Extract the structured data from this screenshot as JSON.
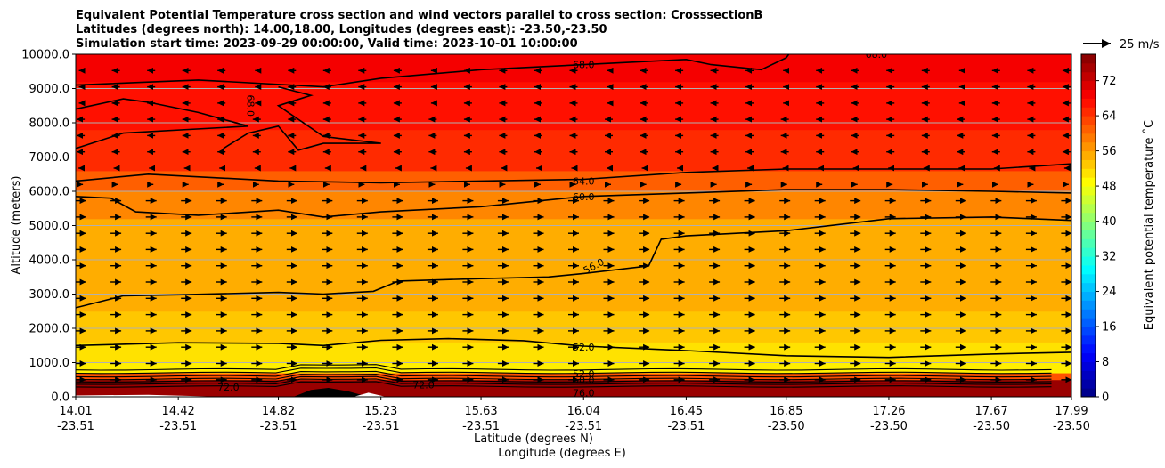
{
  "chart_data": {
    "type": "contour-cross-section",
    "title_lines": [
      "Equivalent Potential Temperature cross section and wind vectors parallel to cross section: CrosssectionB",
      "Latitudes (degrees north): 14.00,18.00, Longitudes (degrees east): -23.50,-23.50",
      "Simulation start time: 2023-09-29 00:00:00, Valid time: 2023-10-01 10:00:00"
    ],
    "xlabel_lat": "Latitude (degrees N)",
    "xlabel_lon": "Longitude (degrees E)",
    "ylabel": "Altitude (meters)",
    "xlim": [
      14.01,
      17.99
    ],
    "ylim": [
      0,
      10000
    ],
    "xticks": [
      {
        "lat": "14.01",
        "lon": "-23.51",
        "value": 14.01
      },
      {
        "lat": "14.42",
        "lon": "-23.51",
        "value": 14.42
      },
      {
        "lat": "14.82",
        "lon": "-23.51",
        "value": 14.82
      },
      {
        "lat": "15.23",
        "lon": "-23.51",
        "value": 15.23
      },
      {
        "lat": "15.63",
        "lon": "-23.51",
        "value": 15.63
      },
      {
        "lat": "16.04",
        "lon": "-23.51",
        "value": 16.04
      },
      {
        "lat": "16.45",
        "lon": "-23.51",
        "value": 16.45
      },
      {
        "lat": "16.85",
        "lon": "-23.50",
        "value": 16.85
      },
      {
        "lat": "17.26",
        "lon": "-23.50",
        "value": 17.26
      },
      {
        "lat": "17.67",
        "lon": "-23.50",
        "value": 17.67
      },
      {
        "lat": "17.99",
        "lon": "-23.50",
        "value": 17.99
      }
    ],
    "yticks": [
      "0.0",
      "1000.0",
      "2000.0",
      "3000.0",
      "4000.0",
      "5000.0",
      "6000.0",
      "7000.0",
      "8000.0",
      "9000.0",
      "10000.0"
    ],
    "ytick_values": [
      0,
      1000,
      2000,
      3000,
      4000,
      5000,
      6000,
      7000,
      8000,
      9000,
      10000
    ],
    "colorbar": {
      "label": "Equivalent potential temperature ˚C",
      "ticks": [
        "0",
        "8",
        "16",
        "24",
        "32",
        "40",
        "48",
        "56",
        "64",
        "72"
      ],
      "tick_values": [
        0,
        8,
        16,
        24,
        32,
        40,
        48,
        56,
        64,
        72
      ],
      "range": [
        0,
        78
      ],
      "colormap": "jet"
    },
    "quiver_key_label": "25 m/s",
    "wind_direction": "northward (along section, toward increasing latitude) above ~6000 m westward-pointing arrows (negative) and below ~6000 m positive",
    "contour_labels": [
      {
        "text": "68.0",
        "x": 16.04,
        "y": 9700
      },
      {
        "text": "68.0",
        "x": 14.71,
        "y": 8500,
        "rotated": true
      },
      {
        "text": "68.0",
        "x": 17.21,
        "y": 10000
      },
      {
        "text": "64.0",
        "x": 16.04,
        "y": 6300
      },
      {
        "text": "60.0",
        "x": 16.04,
        "y": 5850
      },
      {
        "text": "56.0",
        "x": 16.08,
        "y": 3820
      },
      {
        "text": "52.0",
        "x": 16.04,
        "y": 1450
      },
      {
        "text": "52.0",
        "x": 16.04,
        "y": 680
      },
      {
        "text": "60.0",
        "x": 16.04,
        "y": 500
      },
      {
        "text": "72.0",
        "x": 14.62,
        "y": 280
      },
      {
        "text": "72.0",
        "x": 15.4,
        "y": 350
      },
      {
        "text": "76.0",
        "x": 16.04,
        "y": 120
      }
    ],
    "filled_bands_by_altitude": [
      {
        "ymin": 0,
        "ymax": 500,
        "value": 76
      },
      {
        "ymin": 500,
        "ymax": 700,
        "value": 62
      },
      {
        "ymin": 700,
        "ymax": 1000,
        "value": 50
      },
      {
        "ymin": 1000,
        "ymax": 1600,
        "value": 51
      },
      {
        "ymin": 1600,
        "ymax": 2500,
        "value": 53
      },
      {
        "ymin": 2500,
        "ymax": 5200,
        "value": 55
      },
      {
        "ymin": 5200,
        "ymax": 6000,
        "value": 58
      },
      {
        "ymin": 6000,
        "ymax": 6600,
        "value": 61
      },
      {
        "ymin": 6600,
        "ymax": 7800,
        "value": 65
      },
      {
        "ymin": 7800,
        "ymax": 9200,
        "value": 67
      },
      {
        "ymin": 9200,
        "ymax": 10000,
        "value": 69
      }
    ],
    "contour_lines": [
      {
        "level": 52,
        "points": [
          [
            14.01,
            1500
          ],
          [
            14.42,
            1580
          ],
          [
            14.82,
            1560
          ],
          [
            15.0,
            1500
          ],
          [
            15.23,
            1650
          ],
          [
            15.5,
            1700
          ],
          [
            15.8,
            1640
          ],
          [
            16.04,
            1480
          ],
          [
            16.45,
            1350
          ],
          [
            16.85,
            1200
          ],
          [
            17.26,
            1150
          ],
          [
            17.67,
            1250
          ],
          [
            17.99,
            1300
          ]
        ]
      },
      {
        "level": 56,
        "points": [
          [
            14.01,
            2600
          ],
          [
            14.2,
            2950
          ],
          [
            14.42,
            2980
          ],
          [
            14.82,
            3050
          ],
          [
            15.0,
            3000
          ],
          [
            15.2,
            3080
          ],
          [
            15.3,
            3380
          ],
          [
            15.63,
            3450
          ],
          [
            15.9,
            3500
          ],
          [
            16.04,
            3600
          ],
          [
            16.3,
            3820
          ],
          [
            16.35,
            4600
          ],
          [
            16.45,
            4700
          ],
          [
            16.85,
            4850
          ],
          [
            17.26,
            5200
          ],
          [
            17.67,
            5250
          ],
          [
            17.99,
            5150
          ]
        ]
      },
      {
        "level": 60,
        "points": [
          [
            14.01,
            5850
          ],
          [
            14.15,
            5800
          ],
          [
            14.25,
            5400
          ],
          [
            14.5,
            5300
          ],
          [
            14.82,
            5450
          ],
          [
            15.0,
            5250
          ],
          [
            15.23,
            5400
          ],
          [
            15.63,
            5550
          ],
          [
            16.04,
            5850
          ],
          [
            16.45,
            5950
          ],
          [
            16.85,
            6050
          ],
          [
            17.26,
            6050
          ],
          [
            17.67,
            6000
          ],
          [
            17.99,
            5950
          ]
        ]
      },
      {
        "level": 64,
        "points": [
          [
            14.01,
            6300
          ],
          [
            14.3,
            6500
          ],
          [
            14.82,
            6300
          ],
          [
            15.23,
            6250
          ],
          [
            15.63,
            6300
          ],
          [
            16.04,
            6350
          ],
          [
            16.45,
            6550
          ],
          [
            16.85,
            6650
          ],
          [
            17.26,
            6650
          ],
          [
            17.67,
            6650
          ],
          [
            17.99,
            6800
          ]
        ]
      },
      {
        "level": 68,
        "points": [
          [
            14.01,
            9100
          ],
          [
            14.5,
            9250
          ],
          [
            15.0,
            9050
          ],
          [
            15.23,
            9300
          ],
          [
            15.63,
            9550
          ],
          [
            16.04,
            9700
          ],
          [
            16.45,
            9850
          ],
          [
            16.55,
            9700
          ],
          [
            16.75,
            9550
          ],
          [
            16.85,
            9900
          ],
          [
            16.86,
            10000
          ]
        ]
      },
      {
        "level": 68,
        "points": [
          [
            14.01,
            8400
          ],
          [
            14.2,
            8700
          ],
          [
            14.3,
            8600
          ],
          [
            14.5,
            8300
          ],
          [
            14.7,
            7900
          ],
          [
            14.2,
            7700
          ],
          [
            14.01,
            7250
          ]
        ]
      },
      {
        "level": 68,
        "points": [
          [
            14.6,
            7250
          ],
          [
            14.7,
            7700
          ],
          [
            14.82,
            7900
          ],
          [
            14.9,
            7200
          ],
          [
            15.0,
            7400
          ],
          [
            15.23,
            7400
          ],
          [
            15.0,
            7600
          ],
          [
            14.82,
            8500
          ],
          [
            14.95,
            8800
          ],
          [
            14.82,
            9050
          ]
        ]
      }
    ],
    "terrain_line_points": [
      [
        14.9,
        0
      ],
      [
        15.0,
        380
      ],
      [
        15.1,
        0
      ]
    ]
  }
}
